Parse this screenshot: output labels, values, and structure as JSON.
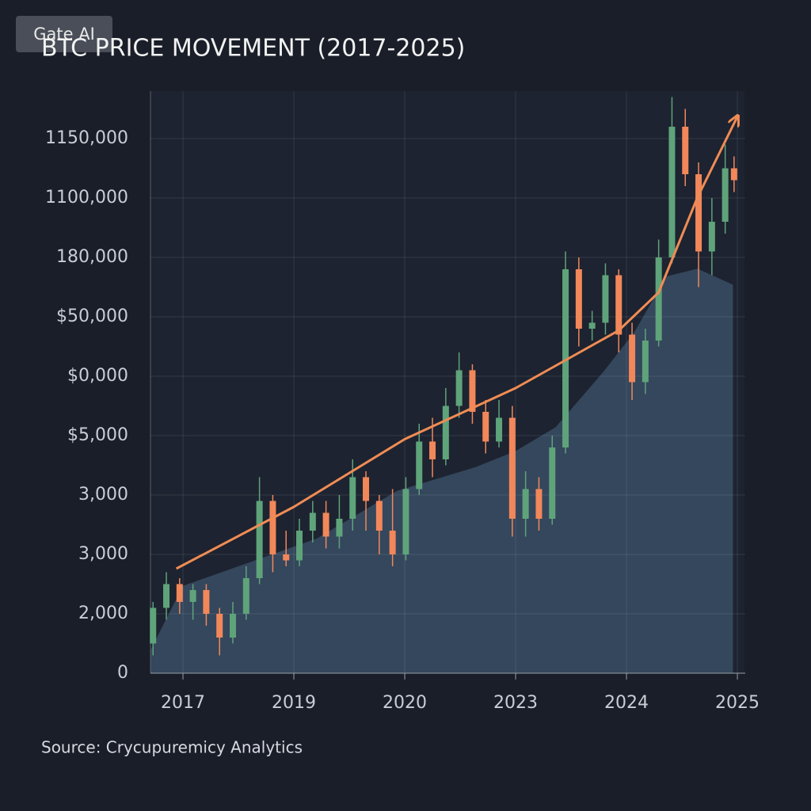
{
  "watermark": "Gate AI",
  "chart_data": {
    "type": "candlestick",
    "title": "BTC PRICE MOVEMENT (2017-2025)",
    "source": "Source: Crycupuremicy Analytics",
    "up_color": "#5fa37a",
    "down_color": "#f2875a",
    "trend_color": "#f08c55",
    "area_color": "#3b5068",
    "grid": true,
    "xlim": [
      -0.293,
      5.071
    ],
    "ylim": [
      0,
      9.8
    ],
    "xticks": [
      {
        "value": 0,
        "label": "2017"
      },
      {
        "value": 1,
        "label": "2019"
      },
      {
        "value": 2,
        "label": "2020"
      },
      {
        "value": 3,
        "label": "2023"
      },
      {
        "value": 4,
        "label": "2024"
      },
      {
        "value": 5,
        "label": "2025"
      }
    ],
    "yticks": [
      {
        "value": 0,
        "label": "0"
      },
      {
        "value": 1,
        "label": "2,000"
      },
      {
        "value": 2,
        "label": "3,000"
      },
      {
        "value": 3,
        "label": "3,000"
      },
      {
        "value": 4,
        "label": "$5,000"
      },
      {
        "value": 5,
        "label": "$0,000"
      },
      {
        "value": 6,
        "label": "$50,000"
      },
      {
        "value": 7,
        "label": "180,000"
      },
      {
        "value": 8,
        "label": "1100,000"
      },
      {
        "value": 9,
        "label": "1150,000"
      }
    ],
    "x": [
      -0.27,
      -0.15,
      -0.03,
      0.09,
      0.21,
      0.33,
      0.45,
      0.57,
      0.69,
      0.81,
      0.93,
      1.05,
      1.17,
      1.29,
      1.41,
      1.53,
      1.65,
      1.77,
      1.89,
      2.01,
      2.13,
      2.25,
      2.37,
      2.49,
      2.61,
      2.73,
      2.85,
      2.97,
      3.09,
      3.21,
      3.33,
      3.45,
      3.57,
      3.69,
      3.81,
      3.93,
      4.05,
      4.17,
      4.29,
      4.41,
      4.53,
      4.65,
      4.77,
      4.89,
      4.97
    ],
    "open": [
      0.5,
      1.1,
      1.5,
      1.2,
      1.4,
      1.0,
      0.6,
      1.0,
      1.6,
      2.9,
      2.0,
      1.9,
      2.4,
      2.7,
      2.3,
      2.6,
      3.3,
      2.9,
      2.4,
      2.0,
      3.1,
      3.9,
      3.6,
      4.5,
      5.1,
      4.4,
      3.9,
      4.3,
      2.6,
      3.1,
      2.6,
      3.8,
      6.8,
      5.8,
      5.9,
      6.7,
      5.7,
      4.9,
      5.6,
      7.0,
      9.2,
      8.4,
      7.1,
      7.6,
      8.5
    ],
    "high": [
      1.2,
      1.7,
      1.6,
      1.5,
      1.5,
      1.1,
      1.2,
      1.8,
      3.3,
      3.0,
      2.4,
      2.6,
      2.9,
      2.9,
      3.0,
      3.6,
      3.4,
      3.0,
      3.1,
      3.3,
      4.2,
      4.3,
      4.8,
      5.4,
      5.2,
      4.6,
      4.6,
      4.5,
      3.4,
      3.3,
      4.0,
      7.1,
      7.0,
      6.1,
      6.9,
      6.8,
      5.9,
      5.8,
      7.3,
      9.7,
      9.5,
      8.6,
      8.0,
      8.9,
      8.7
    ],
    "low": [
      0.3,
      0.9,
      1.0,
      0.9,
      0.8,
      0.3,
      0.5,
      0.9,
      1.5,
      1.7,
      1.8,
      1.8,
      2.2,
      2.1,
      2.1,
      2.4,
      2.4,
      2.0,
      1.8,
      1.9,
      3.0,
      3.3,
      3.5,
      4.3,
      4.2,
      3.7,
      3.8,
      2.3,
      2.3,
      2.4,
      2.5,
      3.7,
      5.5,
      5.6,
      5.7,
      5.4,
      4.6,
      4.7,
      5.5,
      6.9,
      8.2,
      6.5,
      6.7,
      7.4,
      8.1
    ],
    "close": [
      1.1,
      1.5,
      1.2,
      1.4,
      1.0,
      0.6,
      1.0,
      1.6,
      2.9,
      2.0,
      1.9,
      2.4,
      2.7,
      2.3,
      2.6,
      3.3,
      2.9,
      2.4,
      2.0,
      3.1,
      3.9,
      3.6,
      4.5,
      5.1,
      4.4,
      3.9,
      4.3,
      2.6,
      3.1,
      2.6,
      3.8,
      6.8,
      5.8,
      5.9,
      6.7,
      5.7,
      4.9,
      5.6,
      7.0,
      9.2,
      8.4,
      7.1,
      7.6,
      8.5,
      8.3
    ],
    "area": {
      "x": [
        -0.29,
        0,
        0.5,
        1.21,
        1.93,
        2.64,
        3.0,
        3.36,
        3.79,
        4.07,
        4.36,
        4.64,
        4.96
      ],
      "y": [
        0.4,
        1.47,
        1.8,
        2.27,
        3.07,
        3.47,
        3.74,
        4.14,
        5.07,
        5.74,
        6.68,
        6.81,
        6.54
      ]
    },
    "trend": {
      "x": [
        -0.06,
        1.0,
        2.0,
        3.0,
        3.93,
        4.29,
        4.64,
        5.0
      ],
      "y": [
        1.76,
        2.8,
        3.94,
        4.8,
        5.77,
        6.41,
        8.01,
        9.37
      ]
    }
  }
}
